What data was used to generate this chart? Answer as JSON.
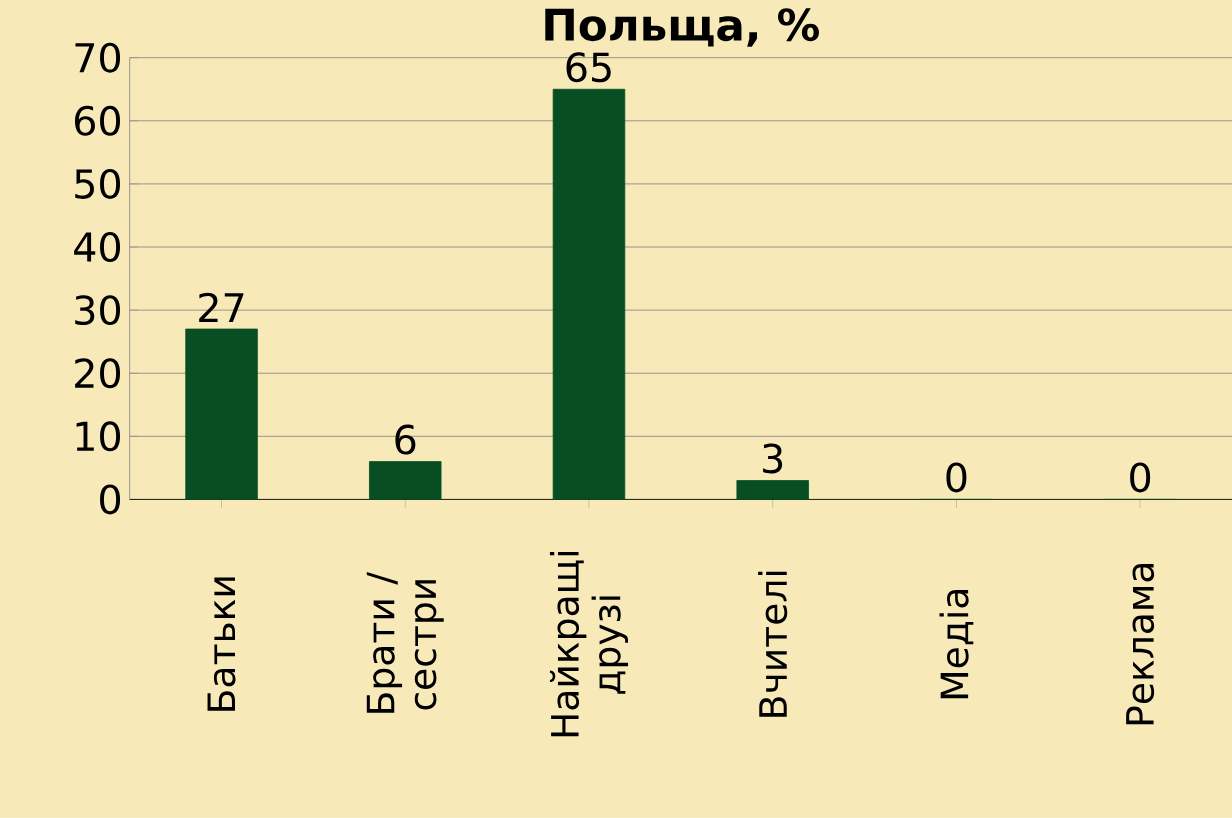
{
  "chart_data": {
    "type": "bar",
    "title": "Польща, %",
    "categories": [
      "Батьки",
      "Брати / сестри",
      "Найкращі друзі",
      "Вчителі",
      "Медіа",
      "Реклама"
    ],
    "values": [
      27,
      6,
      65,
      3,
      0,
      0
    ],
    "color": "#074f22",
    "ylim": [
      0,
      70
    ],
    "yticks": [
      0,
      10,
      20,
      30,
      40,
      50,
      60,
      70
    ],
    "grid": "y",
    "data_labels": true
  }
}
